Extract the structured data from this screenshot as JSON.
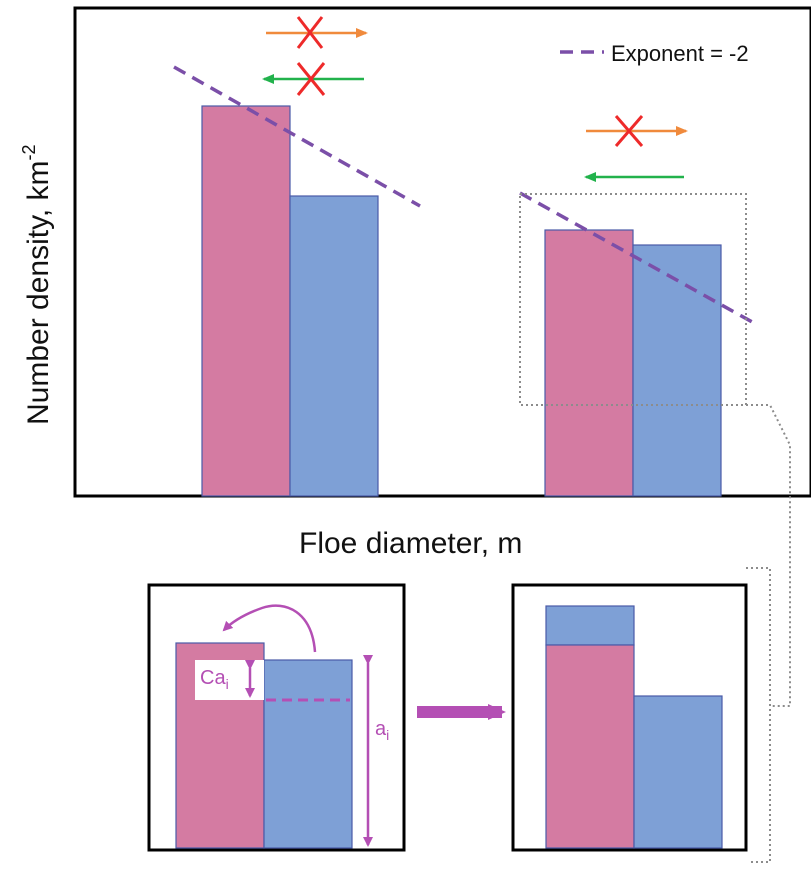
{
  "main_chart": {
    "ylabel": "Number density, km",
    "ylabel_sup": "-2",
    "xlabel": "Floe diameter, m",
    "legend_label": "Exponent = -2"
  },
  "inset": {
    "ca_label": "Ca",
    "ca_sub": "i",
    "a_label": "a",
    "a_sub": "i"
  },
  "colors": {
    "pink_bar": "#d47ba2",
    "blue_bar": "#7ea0d6",
    "bar_stroke": "#4a5aa8",
    "exponent_line": "#7b4fa8",
    "orange_arrow": "#f08a3c",
    "green_arrow": "#22b24c",
    "cross": "#ee2a2a",
    "magenta": "#b44fb4",
    "dotted_box": "#8c8c8c"
  }
}
